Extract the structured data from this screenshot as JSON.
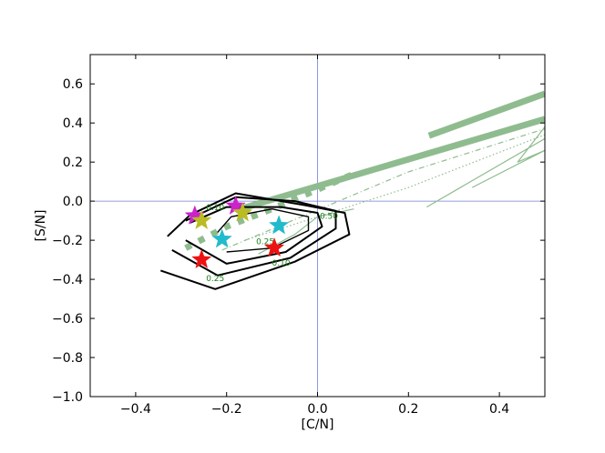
{
  "chart_data": {
    "type": "scatter",
    "xlabel": "[C/N]",
    "ylabel": "[S/N]",
    "xlim": [
      -0.5,
      0.5
    ],
    "ylim": [
      -1.0,
      0.75
    ],
    "xticks": [
      -0.4,
      -0.2,
      0.0,
      0.2,
      0.4
    ],
    "xtick_labels": [
      "−0.4",
      "−0.2",
      "0.0",
      "0.2",
      "0.4"
    ],
    "yticks": [
      -1.0,
      -0.8,
      -0.6,
      -0.4,
      -0.2,
      0.0,
      0.2,
      0.4,
      0.6
    ],
    "ytick_labels": [
      "−1.0",
      "−0.8",
      "−0.6",
      "−0.4",
      "−0.2",
      "0.0",
      "0.2",
      "0.4",
      "0.6"
    ],
    "reference_lines": {
      "x": 0.0,
      "y": 0.0,
      "color": "#6f7fd6"
    },
    "contours": {
      "color": "#000000",
      "levels": [
        {
          "label": "",
          "points": [
            [
              -0.345,
              -0.355
            ],
            [
              -0.225,
              -0.45
            ],
            [
              -0.05,
              -0.31
            ],
            [
              0.07,
              -0.17
            ],
            [
              0.06,
              -0.06
            ],
            [
              -0.03,
              -0.02
            ],
            [
              -0.18,
              0.04
            ],
            [
              -0.28,
              -0.07
            ],
            [
              -0.33,
              -0.18
            ]
          ]
        },
        {
          "label": "0.10",
          "points": [
            [
              -0.32,
              -0.25
            ],
            [
              -0.22,
              -0.38
            ],
            [
              -0.06,
              -0.29
            ],
            [
              0.04,
              -0.14
            ],
            [
              0.04,
              -0.05
            ],
            [
              -0.05,
              0.0
            ],
            [
              -0.18,
              0.02
            ],
            [
              -0.29,
              -0.1
            ]
          ]
        },
        {
          "label": "0.25",
          "points": [
            [
              -0.29,
              -0.2
            ],
            [
              -0.2,
              -0.32
            ],
            [
              -0.07,
              -0.26
            ],
            [
              0.01,
              -0.13
            ],
            [
              0.0,
              -0.06
            ],
            [
              -0.08,
              -0.03
            ],
            [
              -0.2,
              -0.03
            ],
            [
              -0.28,
              -0.11
            ]
          ]
        },
        {
          "label": "0.50",
          "points": [
            [
              -0.2,
              -0.26
            ],
            [
              -0.1,
              -0.24
            ],
            [
              -0.02,
              -0.15
            ],
            [
              -0.02,
              -0.08
            ],
            [
              -0.1,
              -0.04
            ],
            [
              -0.19,
              -0.08
            ],
            [
              -0.22,
              -0.16
            ]
          ]
        }
      ],
      "label_positions": [
        {
          "text": "0.10",
          "x": -0.225,
          "y": -0.045
        },
        {
          "text": "0.25",
          "x": -0.225,
          "y": -0.41
        },
        {
          "text": "0.10",
          "x": -0.08,
          "y": -0.33
        },
        {
          "text": "0.50",
          "x": 0.025,
          "y": -0.09
        },
        {
          "text": "0.25",
          "x": -0.115,
          "y": -0.22
        }
      ]
    },
    "model_tracks": {
      "color": "#8fbc8f",
      "tracks": [
        {
          "style": "thick-solid",
          "points": [
            [
              0.245,
              0.335
            ],
            [
              0.5,
              0.55
            ]
          ]
        },
        {
          "style": "thick-solid",
          "points": [
            [
              -0.17,
              -0.04
            ],
            [
              0.5,
              0.42
            ]
          ]
        },
        {
          "style": "thick-dotted",
          "points": [
            [
              -0.29,
              -0.24
            ],
            [
              -0.2,
              -0.13
            ],
            [
              -0.1,
              -0.04
            ],
            [
              0.0,
              0.06
            ],
            [
              0.08,
              0.14
            ]
          ]
        },
        {
          "style": "thin-dashdot",
          "points": [
            [
              -0.21,
              -0.25
            ],
            [
              0.2,
              0.15
            ],
            [
              0.5,
              0.37
            ]
          ]
        },
        {
          "style": "thin-dotted",
          "points": [
            [
              -0.16,
              -0.2
            ],
            [
              0.2,
              0.07
            ],
            [
              0.5,
              0.34
            ]
          ]
        },
        {
          "style": "thin-solid",
          "points": [
            [
              0.24,
              -0.03
            ],
            [
              0.5,
              0.32
            ],
            [
              0.5,
              0.38
            ],
            [
              0.44,
              0.2
            ],
            [
              0.5,
              0.26
            ],
            [
              0.34,
              0.07
            ]
          ]
        },
        {
          "style": "thin-solid",
          "points": [
            [
              -0.13,
              -0.27
            ],
            [
              -0.05,
              -0.17
            ],
            [
              0.0,
              -0.08
            ],
            [
              0.08,
              -0.04
            ]
          ]
        }
      ]
    },
    "stars": [
      {
        "color": "#cc22cc",
        "x": -0.27,
        "y": -0.075
      },
      {
        "color": "#cc22cc",
        "x": -0.18,
        "y": -0.025
      },
      {
        "color": "#bbbb22",
        "x": -0.255,
        "y": -0.1
      },
      {
        "color": "#bbbb22",
        "x": -0.165,
        "y": -0.06
      },
      {
        "color": "#22bbcc",
        "x": -0.21,
        "y": -0.195
      },
      {
        "color": "#22bbcc",
        "x": -0.085,
        "y": -0.125
      },
      {
        "color": "#ee1111",
        "x": -0.255,
        "y": -0.3
      },
      {
        "color": "#ee1111",
        "x": -0.095,
        "y": -0.24
      }
    ]
  }
}
